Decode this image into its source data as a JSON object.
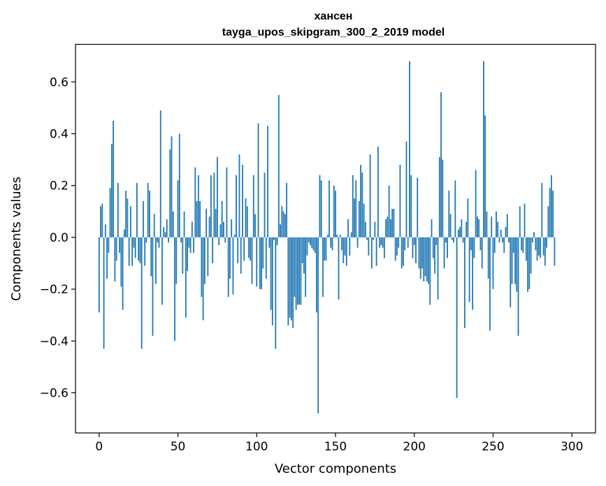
{
  "chart_data": {
    "type": "bar",
    "title": "хансен",
    "subtitle": "tayga_upos_skipgram_300_2_2019 model",
    "xlabel": "Vector components",
    "ylabel": "Components values",
    "xlim": [
      -15,
      315
    ],
    "ylim": [
      -0.755,
      0.745
    ],
    "x_ticks": [
      0,
      50,
      100,
      150,
      200,
      250,
      300
    ],
    "y_ticks": [
      -0.6,
      -0.4,
      -0.2,
      0.0,
      0.2,
      0.4,
      0.6
    ],
    "x_tick_labels": [
      "0",
      "50",
      "100",
      "150",
      "200",
      "250",
      "300"
    ],
    "y_tick_labels": [
      "−0.6",
      "−0.4",
      "−0.2",
      "0.0",
      "0.2",
      "0.4",
      "0.6"
    ],
    "grid": false,
    "bar_color": "#1f77b4",
    "values": [
      -0.29,
      0.12,
      0.13,
      -0.43,
      0.05,
      -0.16,
      -0.06,
      0.19,
      0.36,
      0.45,
      -0.17,
      -0.09,
      0.21,
      -0.06,
      -0.19,
      -0.28,
      0.03,
      0.18,
      0.15,
      -0.11,
      0.12,
      -0.11,
      -0.04,
      -0.08,
      0.21,
      -0.09,
      -0.1,
      -0.43,
      0.14,
      -0.11,
      -0.02,
      0.21,
      0.18,
      -0.15,
      -0.38,
      0.09,
      -0.18,
      -0.02,
      -0.04,
      0.49,
      -0.26,
      0.04,
      0.02,
      0.07,
      -0.02,
      0.34,
      0.39,
      0.1,
      -0.4,
      -0.18,
      0.22,
      0.4,
      -0.02,
      -0.14,
      0.1,
      -0.31,
      -0.13,
      -0.04,
      -0.06,
      0.06,
      -0.06,
      0.27,
      0.14,
      0.24,
      0.14,
      -0.23,
      -0.32,
      -0.18,
      0.11,
      -0.15,
      0.08,
      0.24,
      -0.1,
      0.25,
      0.11,
      0.31,
      -0.03,
      0.05,
      0.14,
      0.06,
      -0.02,
      0.27,
      -0.23,
      -0.16,
      0.07,
      -0.22,
      0.01,
      0.24,
      -0.1,
      0.32,
      -0.14,
      0.28,
      -0.09,
      0.15,
      0.12,
      -0.08,
      -0.09,
      -0.18,
      0.24,
      0.09,
      -0.19,
      0.44,
      -0.2,
      -0.2,
      -0.12,
      0.25,
      -0.16,
      0.43,
      -0.04,
      -0.28,
      -0.34,
      -0.01,
      -0.43,
      -0.03,
      0.55,
      0.05,
      0.12,
      0.1,
      0.09,
      0.21,
      -0.34,
      -0.31,
      -0.32,
      -0.35,
      -0.23,
      -0.28,
      -0.26,
      -0.26,
      -0.26,
      -0.1,
      -0.14,
      -0.23,
      -0.07,
      -0.02,
      -0.03,
      -0.04,
      -0.05,
      -0.06,
      -0.29,
      -0.68,
      0.24,
      0.22,
      -0.23,
      -0.09,
      -0.09,
      0.01,
      0.22,
      -0.04,
      -0.05,
      0.2,
      0.18,
      0.01,
      -0.24,
      0.01,
      -0.05,
      -0.1,
      -0.07,
      -0.11,
      0.07,
      -0.07,
      0.02,
      0.24,
      0.15,
      0.22,
      -0.04,
      0.14,
      0.28,
      0.25,
      0.13,
      0.06,
      -0.01,
      -0.07,
      0.32,
      -0.12,
      -0.01,
      0.06,
      -0.11,
      0.35,
      -0.04,
      -0.03,
      -0.04,
      -0.08,
      0.07,
      0.08,
      0.2,
      0.07,
      0.11,
      0.11,
      -0.09,
      -0.07,
      -0.04,
      0.28,
      -0.12,
      -0.11,
      -0.05,
      0.37,
      -0.04,
      0.68,
      0.24,
      -0.08,
      -0.03,
      -0.1,
      0.23,
      -0.12,
      -0.16,
      -0.12,
      -0.17,
      -0.15,
      -0.17,
      -0.18,
      -0.26,
      0.07,
      -0.08,
      -0.14,
      -0.03,
      -0.24,
      0.31,
      0.56,
      0.3,
      -0.12,
      -0.02,
      -0.08,
      0.18,
      0.09,
      -0.01,
      -0.02,
      0.22,
      -0.62,
      0.03,
      0.04,
      0.07,
      -0.02,
      -0.35,
      0.06,
      0.15,
      -0.25,
      -0.05,
      -0.28,
      -0.08,
      0.26,
      0.08,
      0.07,
      -0.05,
      -0.12,
      0.68,
      0.47,
      0.1,
      -0.16,
      -0.36,
      0.08,
      -0.2,
      -0.06,
      0.1,
      0.06,
      -0.02,
      0.03,
      -0.02,
      -0.06,
      0.04,
      0.09,
      -0.02,
      -0.27,
      -0.18,
      -0.06,
      -0.18,
      -0.21,
      -0.38,
      0.12,
      -0.05,
      -0.06,
      0.13,
      -0.09,
      -0.21,
      -0.2,
      -0.14,
      -0.02,
      0.02,
      -0.05,
      -0.09,
      -0.07,
      -0.08,
      0.21,
      -0.07,
      -0.11,
      -0.04,
      0.12,
      0.19,
      0.24,
      0.18,
      -0.11
    ]
  }
}
